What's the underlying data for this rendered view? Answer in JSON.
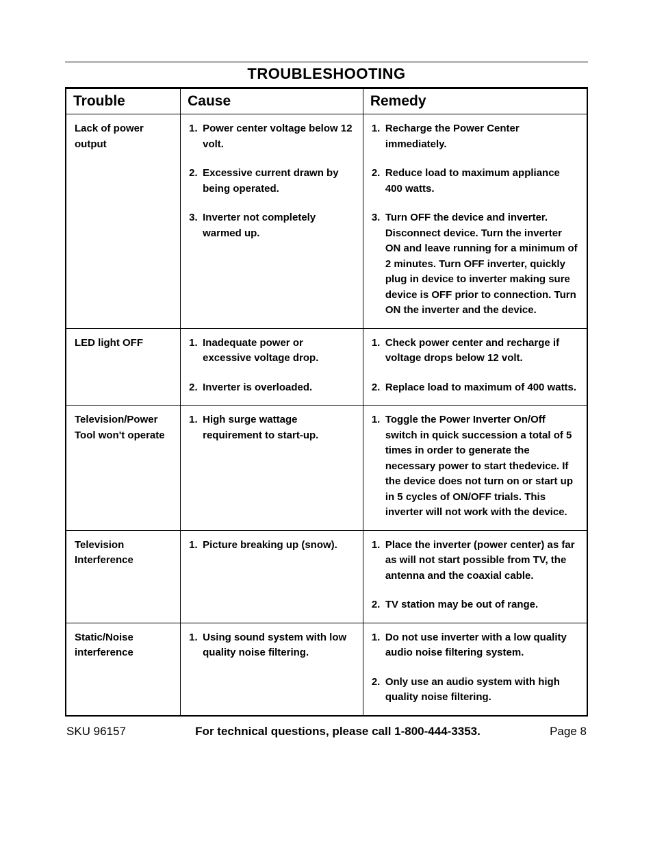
{
  "page": {
    "title": "TROUBLESHOOTING",
    "columns": [
      "Trouble",
      "Cause",
      "Remedy"
    ],
    "col_widths_pct": [
      22,
      35,
      43
    ],
    "border_color": "#000000",
    "background_color": "#ffffff",
    "title_fontsize": 22,
    "header_fontsize": 21,
    "body_fontsize": 15,
    "footer_fontsize": 17
  },
  "rows": [
    {
      "trouble": "Lack of power output",
      "causes": [
        "Power center voltage below 12 volt.",
        "Excessive current drawn by being operated.",
        "Inverter not completely warmed up."
      ],
      "remedies": [
        "Recharge the Power Center immediately.",
        "Reduce load to maximum appliance 400 watts.",
        "Turn OFF the device and inverter. Disconnect device. Turn the inverter ON and leave running for a minimum of 2 minutes. Turn OFF inverter, quickly plug in device to inverter making sure device is OFF prior to connection. Turn ON the inverter and the device."
      ]
    },
    {
      "trouble": "LED light OFF",
      "causes": [
        "Inadequate power or excessive voltage drop.",
        "Inverter is overloaded."
      ],
      "remedies": [
        "Check power center and recharge if voltage drops below 12 volt.",
        "Replace load to maximum of 400 watts."
      ]
    },
    {
      "trouble": "Television/Power Tool won't operate",
      "causes": [
        "High surge wattage requirement to start-up."
      ],
      "remedies": [
        "Toggle the Power Inverter On/Off switch in quick succession a total of 5 times in order to generate the necessary power to start thedevice. If the device does not turn on or start up in 5 cycles of ON/OFF trials. This inverter will not work with the device."
      ]
    },
    {
      "trouble": "Television Interference",
      "causes": [
        "Picture breaking up (snow)."
      ],
      "remedies": [
        "Place the inverter (power center) as far as will not start possible from TV, the antenna and the coaxial cable.",
        "TV station may be out of range."
      ]
    },
    {
      "trouble": "Static/Noise interference",
      "causes": [
        "Using sound system with low quality noise filtering."
      ],
      "remedies": [
        "Do not use inverter with a low quality audio noise filtering system.",
        "Only use an audio system with high quality noise filtering."
      ]
    }
  ],
  "footer": {
    "sku": "SKU 96157",
    "tech": "For technical questions, please call 1-800-444-3353.",
    "page": "Page 8"
  }
}
